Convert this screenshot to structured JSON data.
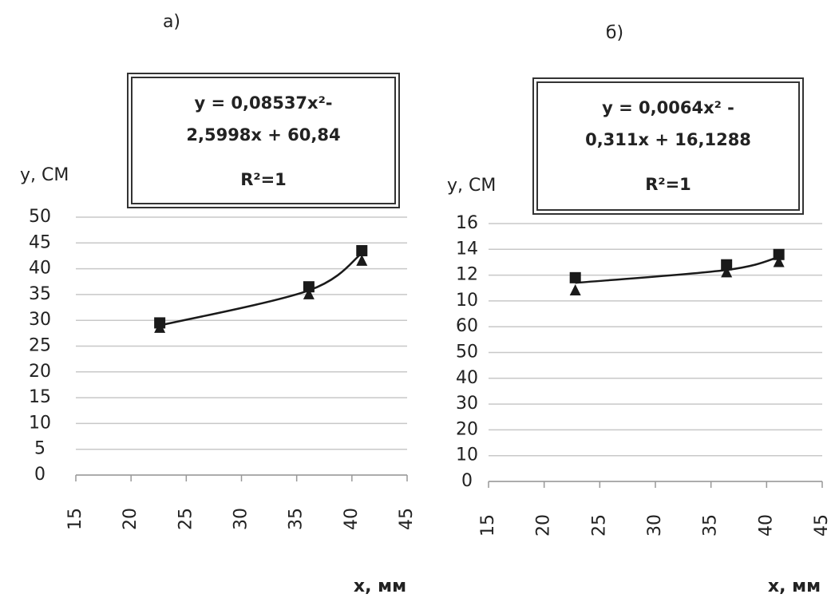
{
  "chart_data": [
    {
      "type": "scatter",
      "title": "а)",
      "equation": [
        "y = 0,08537x²-",
        "2,5998x + 60,84"
      ],
      "r2": "R²=1",
      "y_label": "у, СМ",
      "x_label": "х, мм",
      "xlim": [
        15,
        45
      ],
      "xticks": [
        15,
        20,
        25,
        30,
        35,
        40,
        45
      ],
      "ylim": [
        0,
        50
      ],
      "yticks": [
        0,
        5,
        10,
        15,
        20,
        25,
        30,
        35,
        40,
        45,
        50
      ],
      "grid": true,
      "series": [
        {
          "marker": "square",
          "color": "#1a1a1a",
          "x": [
            22.6,
            36.1,
            40.9
          ],
          "values": [
            29.5,
            36.5,
            43.5
          ]
        },
        {
          "marker": "triangle",
          "color": "#1a1a1a",
          "x": [
            22.6,
            36.1,
            40.9
          ],
          "values": [
            28.5,
            35,
            41.5
          ]
        },
        {
          "marker": "line",
          "color": "#1a1a1a",
          "x": [
            22.6,
            36.1,
            40.9
          ],
          "values": [
            29,
            35.8,
            43
          ]
        }
      ]
    },
    {
      "type": "scatter",
      "title": "б)",
      "equation": [
        "y = 0,0064x² -",
        "0,311x + 16,1288"
      ],
      "r2": "R²=1",
      "y_label": "у, СМ",
      "x_label": "х, мм",
      "xlim": [
        15,
        45
      ],
      "xticks": [
        15,
        20,
        25,
        30,
        35,
        40,
        45
      ],
      "ylim": [
        0,
        10
      ],
      "yticks": [
        {
          "value": 0,
          "label": "0"
        },
        {
          "value": 1,
          "label": "10"
        },
        {
          "value": 2,
          "label": "20"
        },
        {
          "value": 3,
          "label": "30"
        },
        {
          "value": 4,
          "label": "40"
        },
        {
          "value": 5,
          "label": "50"
        },
        {
          "value": 6,
          "label": "60"
        },
        {
          "value": 7,
          "label": "10"
        },
        {
          "value": 8,
          "label": "12"
        },
        {
          "value": 9,
          "label": "14"
        },
        {
          "value": 10,
          "label": "16"
        }
      ],
      "grid": true,
      "series": [
        {
          "marker": "square",
          "color": "#1a1a1a",
          "x": [
            22.8,
            36.4,
            41.1
          ],
          "values": [
            7.9,
            8.4,
            8.8
          ]
        },
        {
          "marker": "triangle",
          "color": "#1a1a1a",
          "x": [
            22.8,
            36.4,
            41.1
          ],
          "values": [
            7.4,
            8.1,
            8.5
          ]
        },
        {
          "marker": "line",
          "color": "#1a1a1a",
          "x": [
            22.8,
            36.4,
            41.1
          ],
          "values": [
            7.7,
            8.2,
            8.7
          ]
        }
      ]
    }
  ]
}
